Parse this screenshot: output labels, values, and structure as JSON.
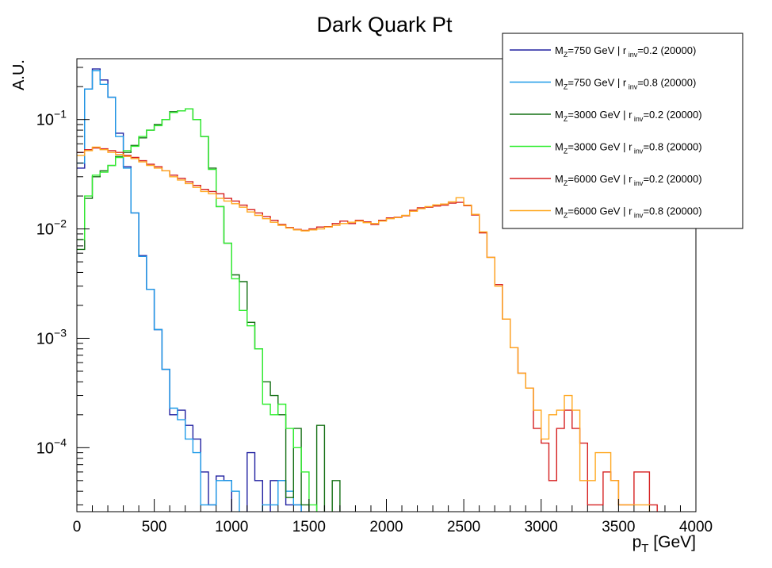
{
  "chart_data": {
    "type": "line",
    "step": true,
    "title": "Dark Quark Pt",
    "ylabel": "A.U.",
    "xlabel_main": "p",
    "xlabel_sub": "T",
    "xlabel_unit": " [GeV]",
    "xlim": [
      0,
      4000
    ],
    "ylim": [
      2.6e-05,
      0.36
    ],
    "yscale": "log",
    "bin_width": 50,
    "x_ticks": [
      0,
      500,
      1000,
      1500,
      2000,
      2500,
      3000,
      3500,
      4000
    ],
    "x_tick_labels": [
      "0",
      "500",
      "1000",
      "1500",
      "2000",
      "2500",
      "3000",
      "3500",
      "4000"
    ],
    "y_ticks": [
      0.0001,
      0.001,
      0.01,
      0.1
    ],
    "y_tick_base": "10",
    "y_tick_exps": [
      "−4",
      "−3",
      "−2",
      "−1"
    ],
    "legend": {
      "position": "top-right"
    },
    "series": [
      {
        "name": "M_Z=750 GeV | r_inv=0.2 (20000)",
        "mz": "750",
        "rinv": "0.2",
        "n": "20000",
        "color": "#2020a0",
        "values": [
          0.036,
          0.19,
          0.29,
          0.23,
          0.16,
          0.075,
          0.037,
          0.014,
          0.0057,
          0.0028,
          0.0012,
          0.00052,
          0.0002,
          0.00022,
          0.00016,
          0.00012,
          6e-05,
          3e-05,
          5.5e-05,
          5e-05,
          2.5e-05,
          2.5e-05,
          9e-05,
          5e-05,
          2e-05,
          5e-05,
          5e-05,
          3e-05,
          3e-05
        ]
      },
      {
        "name": "M_Z=750 GeV | r_inv=0.8 (20000)",
        "mz": "750",
        "rinv": "0.8",
        "n": "20000",
        "color": "#1e9be8",
        "values": [
          0.04,
          0.19,
          0.28,
          0.21,
          0.16,
          0.07,
          0.036,
          0.014,
          0.0056,
          0.0028,
          0.0012,
          0.00052,
          0.00023,
          0.00018,
          0.00012,
          9e-05,
          3e-05,
          3e-05,
          5e-05,
          5e-05,
          4e-05,
          2.5e-05,
          2.5e-05,
          2.5e-05,
          3e-05,
          3e-05,
          5e-05,
          4e-05,
          3e-05
        ]
      },
      {
        "name": "M_Z=3000 GeV | r_inv=0.2 (20000)",
        "mz": "3000",
        "rinv": "0.2",
        "n": "20000",
        "color": "#157015",
        "values": [
          0.0065,
          0.019,
          0.03,
          0.034,
          0.038,
          0.046,
          0.05,
          0.058,
          0.068,
          0.08,
          0.09,
          0.1,
          0.118,
          0.12,
          0.125,
          0.1,
          0.07,
          0.036,
          0.016,
          0.0074,
          0.0038,
          0.0033,
          0.0014,
          0.0008,
          0.0004,
          0.0003,
          0.0002,
          3.5e-05,
          0.00015,
          3e-05,
          2.5e-05,
          0.00016,
          2.5e-05,
          5e-05
        ]
      },
      {
        "name": "M_Z=3000 GeV | r_inv=0.8 (20000)",
        "mz": "3000",
        "rinv": "0.8",
        "n": "20000",
        "color": "#30ee30",
        "values": [
          0.008,
          0.02,
          0.031,
          0.033,
          0.038,
          0.045,
          0.052,
          0.057,
          0.07,
          0.08,
          0.088,
          0.1,
          0.116,
          0.12,
          0.125,
          0.1,
          0.07,
          0.035,
          0.016,
          0.0074,
          0.0035,
          0.0018,
          0.0013,
          0.0008,
          0.00025,
          0.0002,
          0.00025,
          0.00015,
          0.0001,
          6e-05,
          3e-05,
          2.5e-05,
          2.5e-05,
          2.5e-05,
          2.5e-05,
          2.5e-05
        ]
      },
      {
        "name": "M_Z=6000 GeV | r_inv=0.2 (20000)",
        "mz": "6000",
        "rinv": "0.2",
        "n": "20000",
        "color": "#d62020",
        "values": [
          0.05,
          0.053,
          0.055,
          0.054,
          0.052,
          0.05,
          0.047,
          0.045,
          0.042,
          0.039,
          0.037,
          0.034,
          0.031,
          0.029,
          0.027,
          0.025,
          0.023,
          0.022,
          0.021,
          0.019,
          0.018,
          0.0165,
          0.015,
          0.014,
          0.013,
          0.012,
          0.011,
          0.0103,
          0.0099,
          0.0097,
          0.01,
          0.0104,
          0.0105,
          0.0112,
          0.0118,
          0.0112,
          0.012,
          0.0116,
          0.011,
          0.012,
          0.0126,
          0.0128,
          0.0132,
          0.0148,
          0.0156,
          0.0158,
          0.0162,
          0.0165,
          0.0172,
          0.0175,
          0.0163,
          0.0134,
          0.0092,
          0.0055,
          0.0031,
          0.0015,
          0.00082,
          0.00048,
          0.00035,
          0.00015,
          0.00011,
          5e-05,
          0.00015,
          0.00022,
          0.00015,
          0.00011,
          3e-05,
          3e-05,
          6e-05,
          5e-05,
          3e-05,
          3e-05,
          6e-05,
          6e-05,
          3e-05
        ]
      },
      {
        "name": "M_Z=6000 GeV | r_inv=0.8 (20000)",
        "mz": "6000",
        "rinv": "0.8",
        "n": "20000",
        "color": "#ffa820",
        "values": [
          0.047,
          0.052,
          0.056,
          0.053,
          0.05,
          0.048,
          0.046,
          0.044,
          0.041,
          0.038,
          0.036,
          0.034,
          0.03,
          0.028,
          0.026,
          0.024,
          0.022,
          0.021,
          0.019,
          0.018,
          0.017,
          0.0158,
          0.0143,
          0.0133,
          0.0124,
          0.0115,
          0.0108,
          0.0102,
          0.0098,
          0.0096,
          0.0098,
          0.01,
          0.0104,
          0.0108,
          0.0112,
          0.0115,
          0.0118,
          0.0114,
          0.0112,
          0.0118,
          0.0124,
          0.0127,
          0.0133,
          0.0145,
          0.0153,
          0.016,
          0.0166,
          0.0169,
          0.0177,
          0.0193,
          0.0165,
          0.0136,
          0.0094,
          0.0055,
          0.003,
          0.0015,
          0.00082,
          0.00048,
          0.00035,
          0.00022,
          0.00012,
          0.0002,
          0.00022,
          0.0003,
          0.00022,
          5e-05,
          5e-05,
          9e-05,
          9e-05,
          5e-05,
          3e-05,
          3e-05,
          3e-05,
          3e-05
        ]
      }
    ]
  }
}
